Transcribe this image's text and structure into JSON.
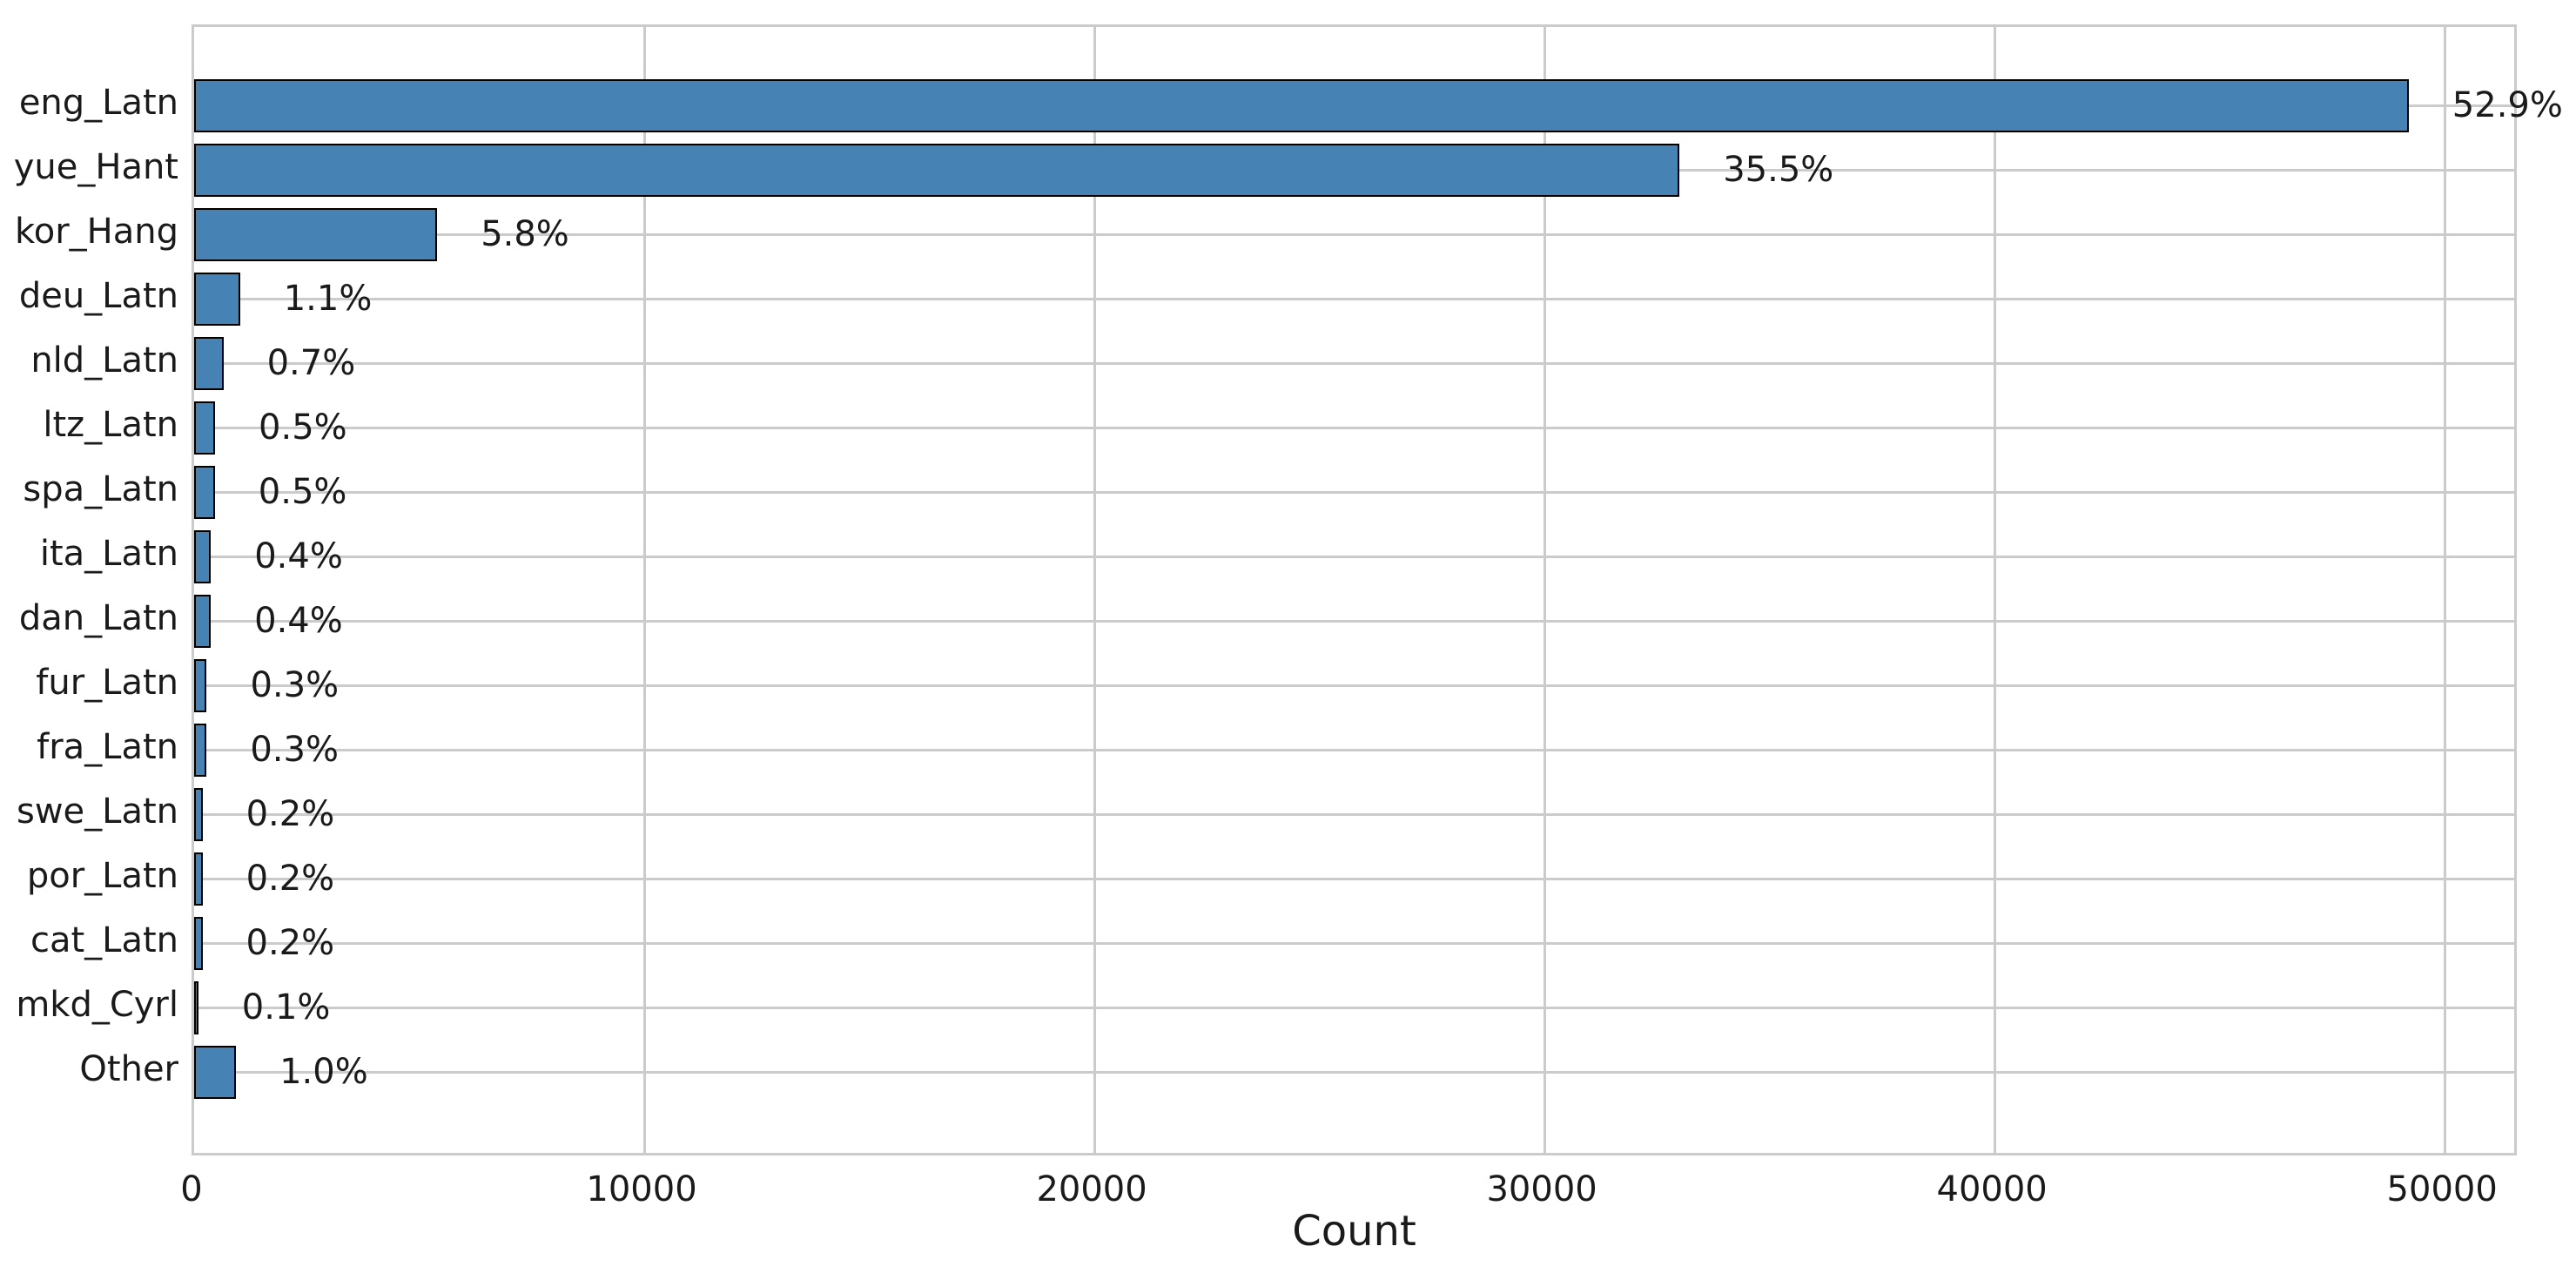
{
  "chart_data": {
    "type": "bar",
    "orientation": "horizontal",
    "title": "",
    "xlabel": "Count",
    "ylabel": "",
    "categories": [
      "eng_Latn",
      "yue_Hant",
      "kor_Hang",
      "deu_Latn",
      "nld_Latn",
      "ltz_Latn",
      "spa_Latn",
      "ita_Latn",
      "dan_Latn",
      "fur_Latn",
      "fra_Latn",
      "swe_Latn",
      "por_Latn",
      "cat_Latn",
      "mkd_Cyrl",
      "Other"
    ],
    "values": [
      49200,
      33000,
      5400,
      1020,
      650,
      465,
      460,
      372,
      370,
      280,
      278,
      186,
      185,
      184,
      93,
      930
    ],
    "percent_labels": [
      "52.9%",
      "35.5%",
      "5.8%",
      "1.1%",
      "0.7%",
      "0.5%",
      "0.5%",
      "0.4%",
      "0.4%",
      "0.3%",
      "0.3%",
      "0.2%",
      "0.2%",
      "0.2%",
      "0.1%",
      "1.0%"
    ],
    "x_ticks": [
      0,
      10000,
      20000,
      30000,
      40000,
      50000
    ],
    "x_tick_labels": [
      "0",
      "10000",
      "20000",
      "30000",
      "40000",
      "50000"
    ],
    "xlim": [
      0,
      51660
    ],
    "grid": true,
    "legend": false,
    "bar_color": "#4682B4",
    "bar_edge_color": "#000000",
    "grid_color": "#cbcbcb",
    "background_color": "#ffffff"
  }
}
